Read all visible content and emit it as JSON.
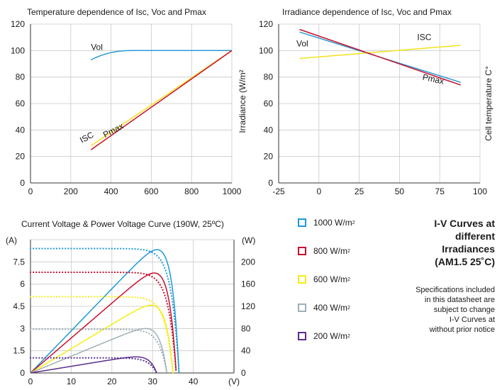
{
  "chart_data": [
    {
      "type": "line",
      "title": "Temperature dependence of Isc, Voc and Pmax",
      "xlabel": "",
      "ylabel": "",
      "xlim": [
        0,
        1000
      ],
      "ylim": [
        0,
        120
      ],
      "x_ticks": [
        "0",
        "200",
        "400",
        "600",
        "800",
        "1000"
      ],
      "y_ticks": [
        "0",
        "20",
        "40",
        "60",
        "80",
        "100",
        "120"
      ],
      "grid": true,
      "series": [
        {
          "name": "Vol",
          "color": "#2b9bd3",
          "x": [
            300,
            350,
            400,
            450,
            500,
            600,
            800,
            1000
          ],
          "y": [
            93,
            96.5,
            98.5,
            99.6,
            100,
            100,
            100,
            100
          ]
        },
        {
          "name": "ISC",
          "color": "#f2e21b",
          "x": [
            300,
            1000
          ],
          "y": [
            28,
            100
          ]
        },
        {
          "name": "Pmax",
          "color": "#c8102e",
          "x": [
            300,
            1000
          ],
          "y": [
            25,
            100
          ]
        }
      ],
      "annotations": [
        "Vol",
        "ISC",
        "Pmax"
      ]
    },
    {
      "type": "line",
      "title": "Irradiance dependence of Isc, Voc and Pmax",
      "xlabel": "",
      "ylabel": "Irradiance (W/m²",
      "ylabel_right": "Cell temperature C°",
      "xlim": [
        -25,
        100
      ],
      "ylim": [
        0,
        120
      ],
      "x_ticks": [
        "-25",
        "0",
        "25",
        "50",
        "75",
        "100"
      ],
      "y_ticks": [
        "0",
        "20",
        "40",
        "60",
        "80",
        "100",
        "120"
      ],
      "grid": true,
      "series": [
        {
          "name": "Vol",
          "color": "#2b9bd3",
          "x": [
            -12,
            88
          ],
          "y": [
            114,
            76
          ]
        },
        {
          "name": "ISC",
          "color": "#f2e21b",
          "x": [
            -12,
            88
          ],
          "y": [
            94,
            104
          ]
        },
        {
          "name": "Pmax",
          "color": "#c8102e",
          "x": [
            -12,
            88
          ],
          "y": [
            116,
            74
          ]
        }
      ],
      "annotations": [
        "Vol",
        "ISC",
        "Pmax"
      ]
    },
    {
      "type": "line",
      "title": "Current Voltage & Power Voltage Curve (190W, 25ºC)",
      "xlabel": "(V)",
      "ylabel": "(A)",
      "ylabel_right": "(W)",
      "xlim": [
        0,
        50
      ],
      "ylim": [
        0,
        9
      ],
      "y2lim": [
        0,
        240
      ],
      "x_ticks": [
        "0",
        "10",
        "20",
        "30",
        "40"
      ],
      "y_ticks": [
        "0",
        "1.5",
        "3",
        "4.5",
        "6",
        "7.5"
      ],
      "y2_ticks": [
        "0",
        "40",
        "80",
        "120",
        "160",
        "200"
      ],
      "grid": true,
      "series": [
        {
          "name": "1000 W/m²",
          "color": "#1c9ad6",
          "isc": 8.4,
          "voc": 36.5,
          "vmp": 27,
          "pmax": 222
        },
        {
          "name": "800 W/m²",
          "color": "#c8102e",
          "isc": 6.8,
          "voc": 35.8,
          "vmp": 26,
          "pmax": 180
        },
        {
          "name": "600 W/m²",
          "color": "#f7ec13",
          "isc": 5.15,
          "voc": 35,
          "vmp": 25,
          "pmax": 122
        },
        {
          "name": "400 W/m²",
          "color": "#9fb0b8",
          "isc": 2.95,
          "voc": 33.5,
          "vmp": 24,
          "pmax": 80
        },
        {
          "name": "200 W/m²",
          "color": "#5b2d8e",
          "isc": 1.02,
          "voc": 31,
          "vmp": 23,
          "pmax": 29
        }
      ]
    }
  ],
  "legend": [
    {
      "label": "1000 W/m",
      "sup": "2",
      "color": "#1c9ad6"
    },
    {
      "label": "800 W/m",
      "sup": "2",
      "color": "#c8102e"
    },
    {
      "label": "600 W/m",
      "sup": "2",
      "color": "#f7ec13"
    },
    {
      "label": "400 W/m",
      "sup": "2",
      "color": "#9fb0b8"
    },
    {
      "label": "200 W/m",
      "sup": "2",
      "color": "#5b2d8e"
    }
  ],
  "side_title": [
    "I-V Curves at",
    "different",
    "Irradiances",
    "(AM1.5 25˚C)"
  ],
  "side_note": [
    "Specifications included",
    "in this datasheet are",
    "subject to change",
    "I-V Curves at",
    "without prior notice"
  ]
}
